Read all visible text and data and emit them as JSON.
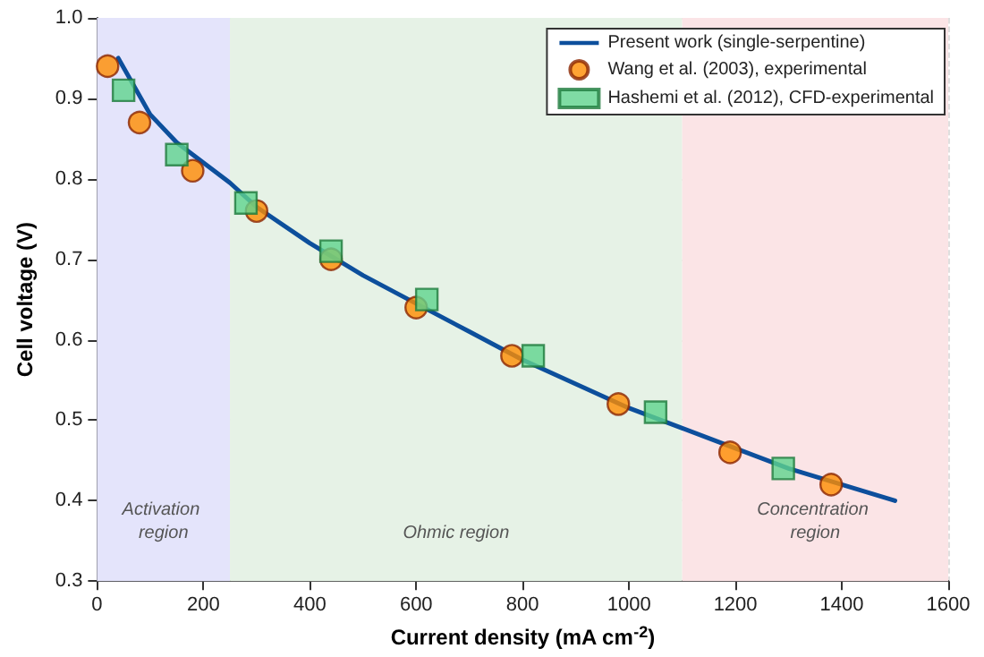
{
  "chart_data": {
    "type": "line",
    "xlabel": "Current density (mA cm$^{-2}$)",
    "ylabel": "Cell voltage (V)",
    "xlim": [
      0,
      1600
    ],
    "xticks": [
      0,
      200,
      400,
      600,
      800,
      1000,
      1200,
      1400,
      1600
    ],
    "ylim": [
      0.3,
      1.0
    ],
    "yticks": [
      0.3,
      0.4,
      0.5,
      0.6,
      0.7,
      0.8,
      0.9,
      {
        "value": 1.0,
        "label": "1.0"
      }
    ],
    "grid": true,
    "legend": "top right",
    "series": [
      {
        "name": "Present work (single-serpentine)",
        "color": "#0d4f9c",
        "marker": "none",
        "line_style": "solid",
        "x": [
          40,
          100,
          150,
          200,
          250,
          300,
          400,
          500,
          600,
          700,
          800,
          900,
          1000,
          1100,
          1200,
          1300,
          1400,
          1500
        ],
        "values": [
          0.95,
          0.88,
          0.845,
          0.82,
          0.795,
          0.765,
          0.72,
          0.68,
          0.645,
          0.61,
          0.575,
          0.545,
          0.515,
          0.49,
          0.465,
          0.44,
          0.42,
          0.4
        ]
      },
      {
        "name": "Wang et al. (2003), experimental",
        "type": "scatter",
        "color": "#ff8c00",
        "marker": "circle",
        "x": [
          20,
          80,
          180,
          300,
          440,
          600,
          780,
          980,
          1190,
          1380
        ],
        "values": [
          0.94,
          0.87,
          0.81,
          0.76,
          0.7,
          0.64,
          0.58,
          0.52,
          0.46,
          0.42
        ]
      },
      {
        "name": "Hashemi et al. (2012), CFD-experimental",
        "type": "scatter",
        "color": "#5fd38d",
        "marker": "square",
        "x": [
          50,
          150,
          280,
          440,
          620,
          820,
          1050,
          1290
        ],
        "values": [
          0.91,
          0.83,
          0.77,
          0.71,
          0.65,
          0.58,
          0.51,
          0.44
        ]
      }
    ],
    "bands": [
      {
        "axis": "x",
        "from": 0,
        "to": 250,
        "label": "Activation region",
        "color": "#e4e4fb"
      },
      {
        "axis": "x",
        "from": 250,
        "to": 1100,
        "label": "Ohmic region",
        "color": "#e6f2e6"
      },
      {
        "axis": "x",
        "from": 1100,
        "to": 1600,
        "label": "Concentration region",
        "color": "#fbe4e6"
      }
    ]
  }
}
